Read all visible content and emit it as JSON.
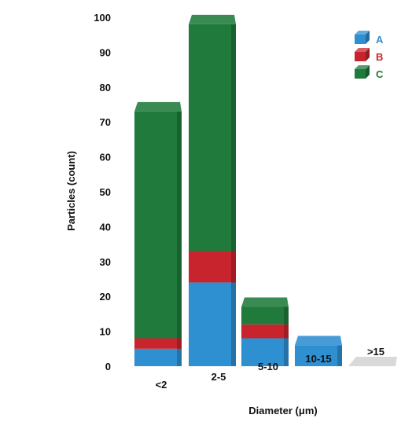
{
  "chart_data": {
    "type": "bar",
    "stacked": true,
    "three_d": true,
    "categories": [
      "<2",
      "2-5",
      "5-10",
      "10-15",
      ">15"
    ],
    "series": [
      {
        "name": "A",
        "color": "#2e8fd1",
        "values": [
          5,
          24,
          8,
          6,
          0
        ]
      },
      {
        "name": "B",
        "color": "#c8242d",
        "values": [
          3,
          9,
          4,
          0,
          0
        ]
      },
      {
        "name": "C",
        "color": "#1f7a3c",
        "values": [
          65,
          65,
          5,
          0,
          0
        ]
      }
    ],
    "xlabel": "Diameter (μm)",
    "ylabel": "Particles (count)",
    "ylim": [
      0,
      100
    ],
    "yticks": [
      "0",
      "10",
      "20",
      "30",
      "40",
      "50",
      "60",
      "70",
      "80",
      "90",
      "100"
    ],
    "grid": false,
    "legend_position": "top-right",
    "empty_bar_color": "#d9d9d9"
  }
}
